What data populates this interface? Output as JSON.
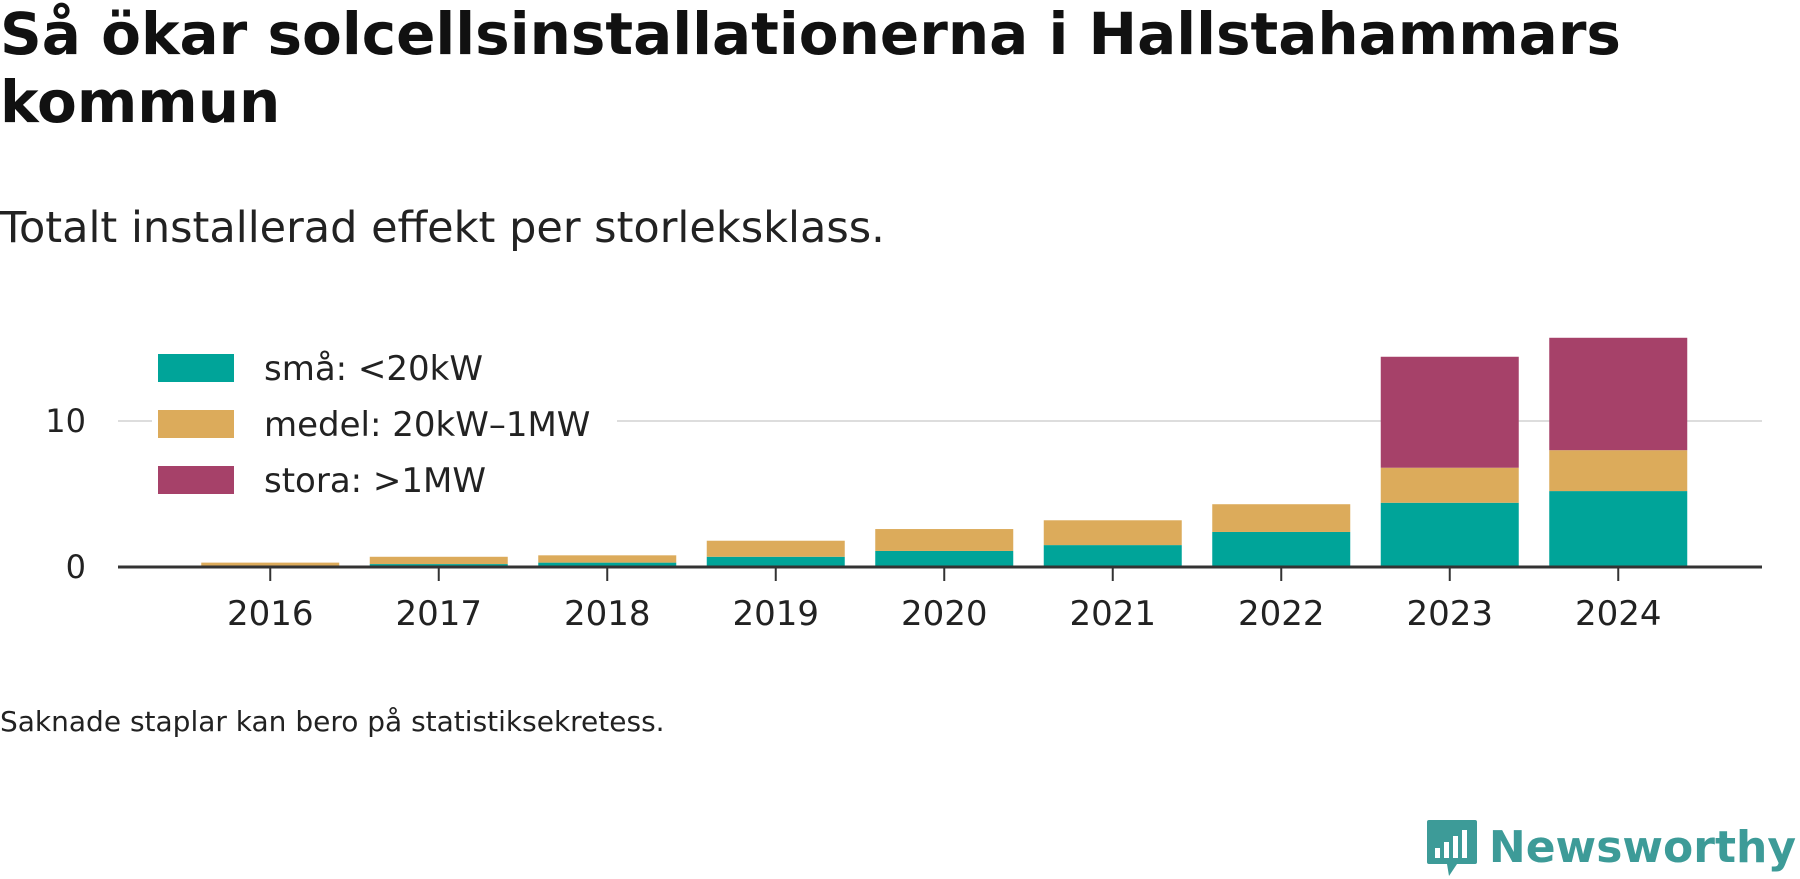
{
  "title": "Så ökar solcellsinstallationerna i Hallstahammars kommun",
  "subtitle": "Totalt installerad effekt per storleksklass.",
  "footnote": "Saknade staplar kan bero på statistiksekretess.",
  "brand": {
    "name": "Newsworthy",
    "logo_icon": "newsworthy-logo-icon",
    "color": "#3d9b98"
  },
  "chart_data": {
    "type": "bar",
    "stacked": true,
    "categories": [
      "2016",
      "2017",
      "2018",
      "2019",
      "2020",
      "2021",
      "2022",
      "2023",
      "2024"
    ],
    "series": [
      {
        "name": "små: <20kW",
        "color": "#00a499",
        "values": [
          0.1,
          0.2,
          0.3,
          0.7,
          1.1,
          1.5,
          2.4,
          4.4,
          5.2
        ]
      },
      {
        "name": "medel: 20kW–1MW",
        "color": "#dcab5b",
        "values": [
          0.2,
          0.5,
          0.5,
          1.1,
          1.5,
          1.7,
          1.9,
          2.4,
          2.8
        ]
      },
      {
        "name": "stora: >1MW",
        "color": "#a64169",
        "values": [
          0,
          0,
          0,
          0,
          0,
          0,
          0,
          7.6,
          7.7
        ]
      }
    ],
    "ylim": [
      0,
      16
    ],
    "yticks": [
      0,
      10
    ],
    "xlabel": "",
    "ylabel": "",
    "grid": true,
    "legend": "top-left"
  }
}
